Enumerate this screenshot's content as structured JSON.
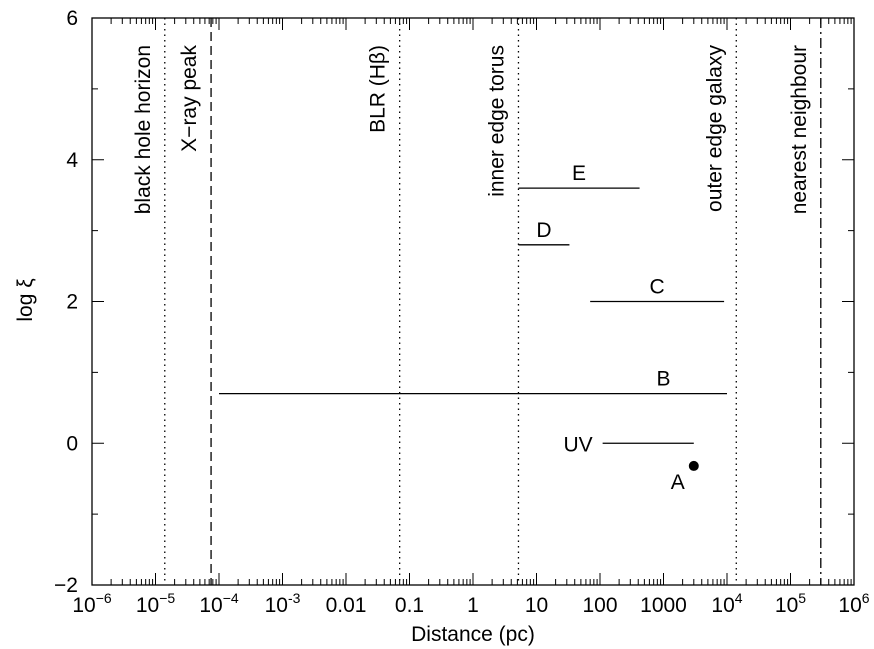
{
  "chart_data": {
    "type": "line",
    "title": "",
    "xlabel": "Distance (pc)",
    "ylabel": "log ξ",
    "xscale": "log",
    "xlim": [
      1e-06,
      1000000.0
    ],
    "ylim": [
      -2,
      6
    ],
    "grid": false,
    "x_ticks": [
      {
        "value": 1e-06,
        "base": "10",
        "exp": "−6"
      },
      {
        "value": 1e-05,
        "base": "10",
        "exp": "−5"
      },
      {
        "value": 0.0001,
        "base": "10",
        "exp": "−4"
      },
      {
        "value": 0.001,
        "base": "10",
        "exp": "-3"
      },
      {
        "value": 0.01,
        "base": "0.01",
        "exp": ""
      },
      {
        "value": 0.1,
        "base": "0.1",
        "exp": ""
      },
      {
        "value": 1,
        "base": "1",
        "exp": ""
      },
      {
        "value": 10,
        "base": "10",
        "exp": ""
      },
      {
        "value": 100,
        "base": "100",
        "exp": ""
      },
      {
        "value": 1000,
        "base": "1000",
        "exp": ""
      },
      {
        "value": 10000.0,
        "base": "10",
        "exp": "4"
      },
      {
        "value": 100000.0,
        "base": "10",
        "exp": "5"
      },
      {
        "value": 1000000.0,
        "base": "10",
        "exp": "6"
      }
    ],
    "y_ticks": [
      {
        "value": -2,
        "label": "−2"
      },
      {
        "value": 0,
        "label": "0"
      },
      {
        "value": 2,
        "label": "2"
      },
      {
        "value": 4,
        "label": "4"
      },
      {
        "value": 6,
        "label": "6"
      }
    ],
    "vertical_lines": [
      {
        "x": 1.4e-05,
        "style": "dotted",
        "label": "black hole horizon"
      },
      {
        "x": 7.5e-05,
        "style": "dashed",
        "label": "X−ray peak"
      },
      {
        "x": 0.07,
        "style": "dotted",
        "label": "BLR (Hβ)"
      },
      {
        "x": 5.2,
        "style": "dotted",
        "label": "inner edge torus"
      },
      {
        "x": 14000,
        "style": "dotted",
        "label": "outer edge galaxy"
      },
      {
        "x": 300000,
        "style": "dashdot",
        "label": "nearest neighbour"
      }
    ],
    "segments": [
      {
        "label": "E",
        "x": [
          5.2,
          420
        ],
        "y": 3.6
      },
      {
        "label": "D",
        "x": [
          5.2,
          33
        ],
        "y": 2.8
      },
      {
        "label": "C",
        "x": [
          70,
          9000
        ],
        "y": 2.0
      },
      {
        "label": "B",
        "x": [
          0.0001,
          10000
        ],
        "y": 0.7
      },
      {
        "label": "UV",
        "x": [
          110,
          3000
        ],
        "y": 0.0
      }
    ],
    "points": [
      {
        "label": "A",
        "x": 3000,
        "y": -0.32
      }
    ]
  }
}
